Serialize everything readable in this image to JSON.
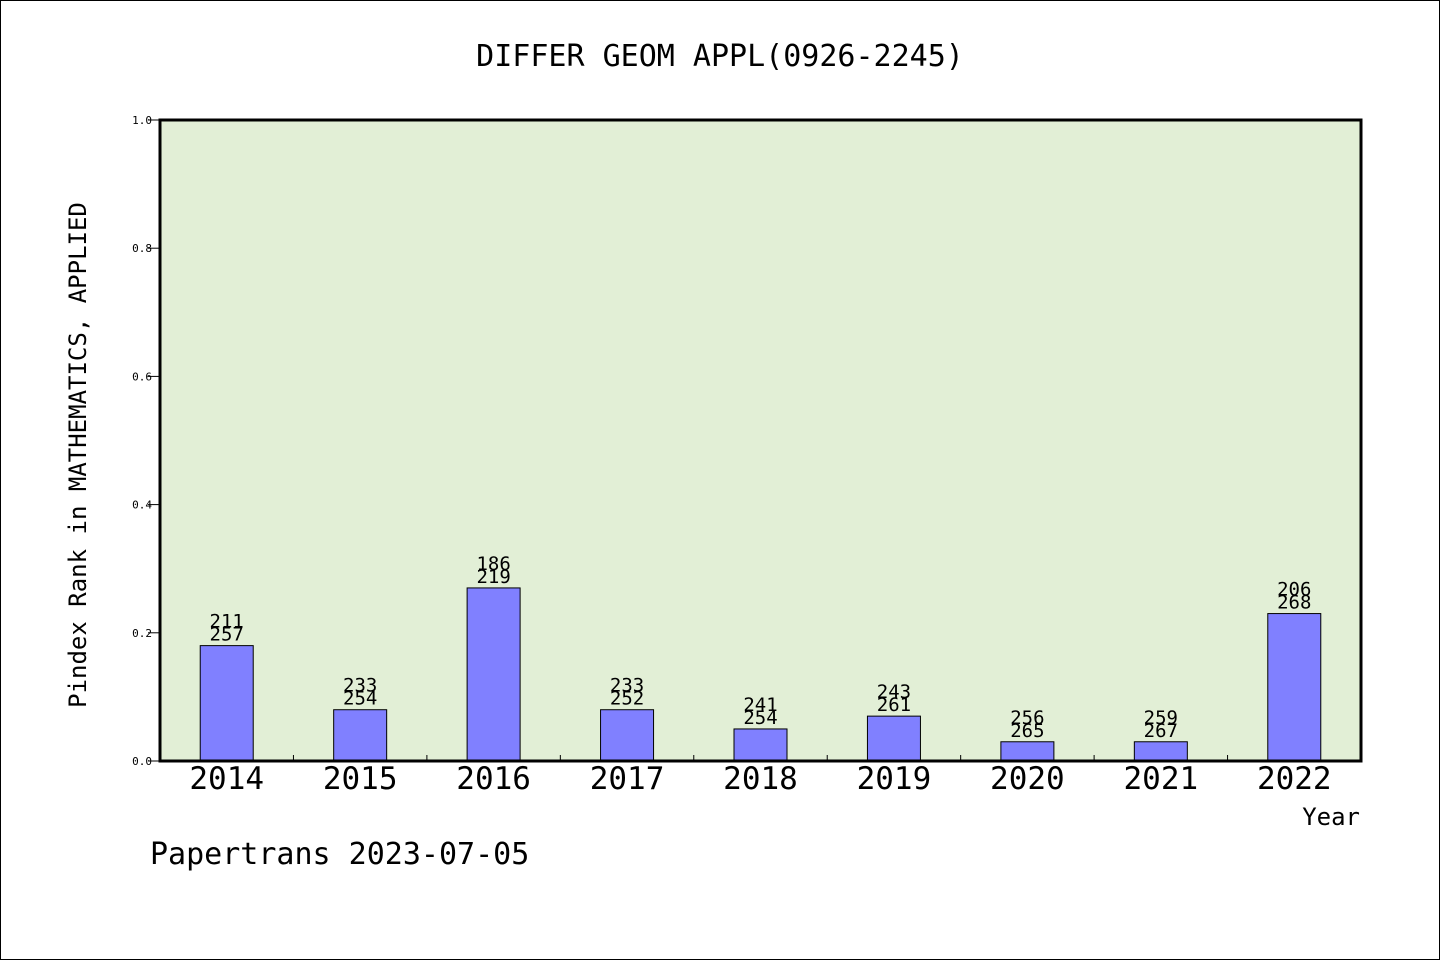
{
  "chart_data": {
    "type": "bar",
    "title": "DIFFER GEOM APPL(0926-2245)",
    "xlabel": "Year",
    "ylabel": "Pindex Rank in MATHEMATICS, APPLIED",
    "ylim": [
      0,
      1.0
    ],
    "yticks": [
      "0.0",
      "0.2",
      "0.4",
      "0.6",
      "0.8",
      "1.0"
    ],
    "categories": [
      "2014",
      "2015",
      "2016",
      "2017",
      "2018",
      "2019",
      "2020",
      "2021",
      "2022"
    ],
    "values": [
      0.18,
      0.08,
      0.27,
      0.08,
      0.05,
      0.07,
      0.03,
      0.03,
      0.23
    ],
    "labels_top": [
      "211",
      "233",
      "186",
      "233",
      "241",
      "243",
      "256",
      "259",
      "206"
    ],
    "labels_bottom": [
      "257",
      "254",
      "219",
      "252",
      "254",
      "261",
      "265",
      "267",
      "268"
    ],
    "grid": false,
    "colors": {
      "plot_background": "#e2efd6",
      "bar_fill": "#8080ff",
      "bar_stroke": "#000000"
    }
  },
  "footer": "Papertrans 2023-07-05"
}
